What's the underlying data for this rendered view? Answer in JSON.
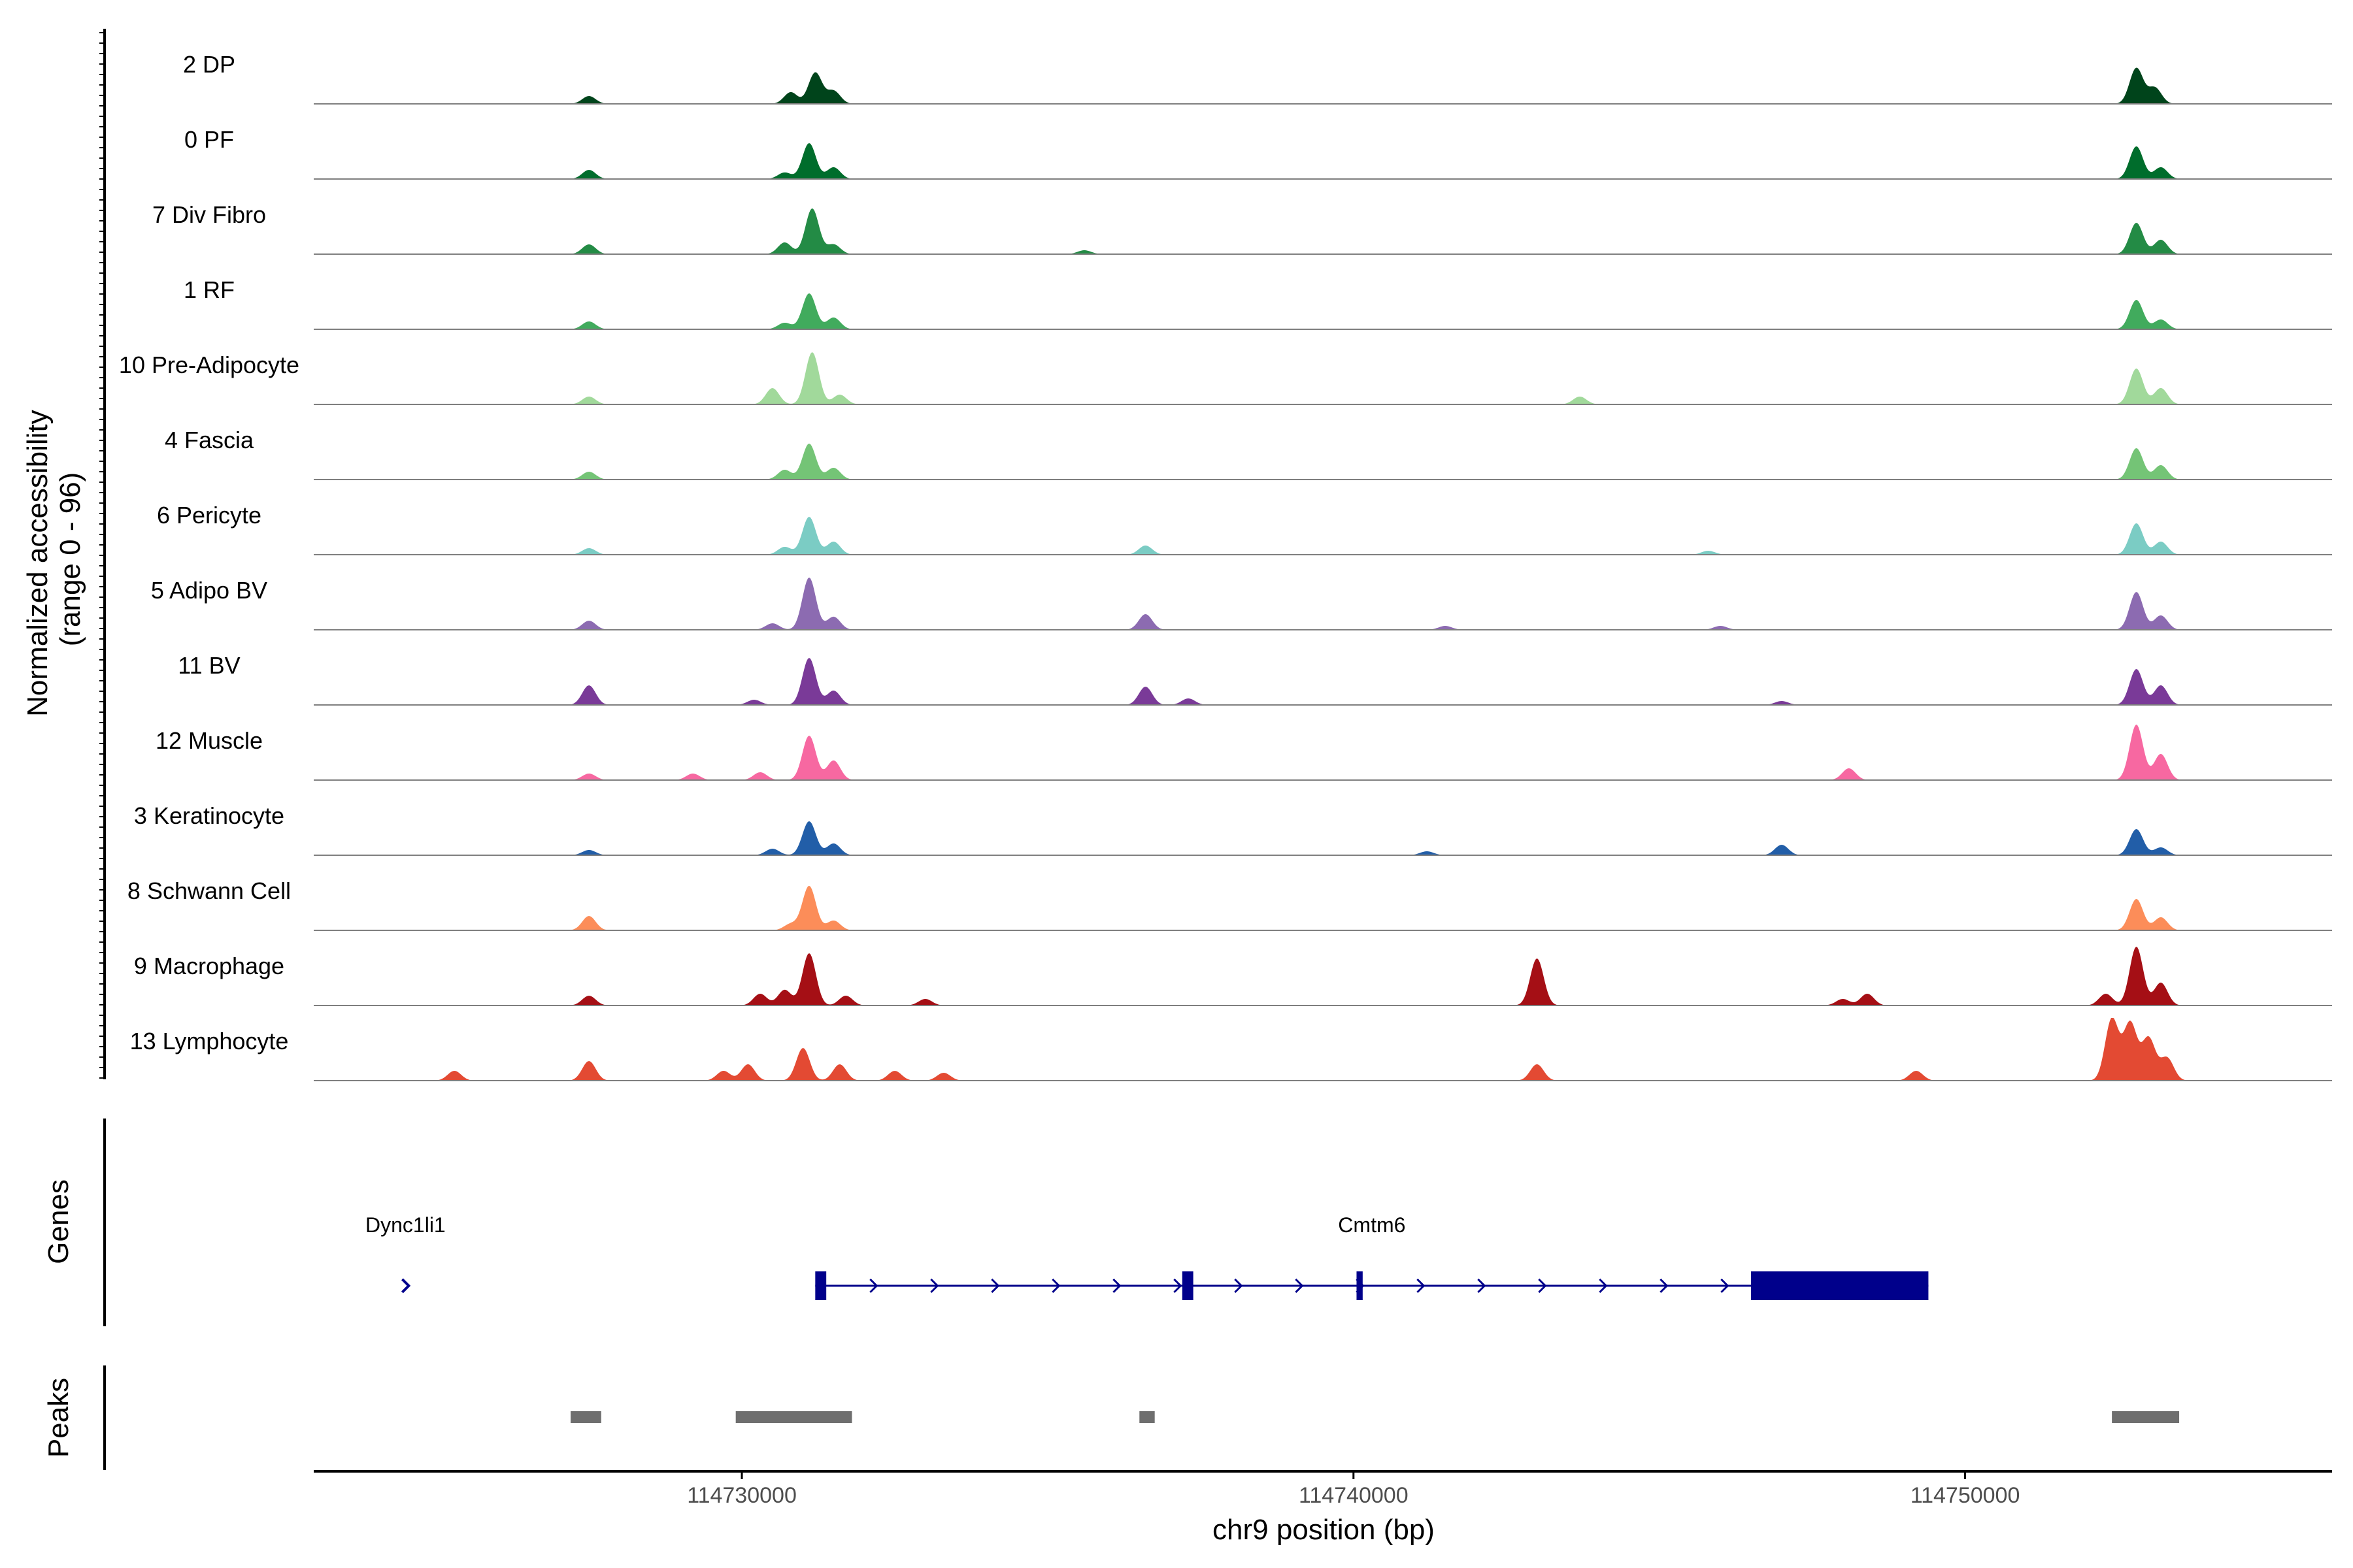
{
  "chart_data": {
    "type": "area",
    "region": {
      "chromosome": "chr9",
      "start": 114723000,
      "end": 114756000
    },
    "y_axis": {
      "title_line1": "Normalized accessibility",
      "title_line2": "(range 0 - 96)",
      "range": [
        0,
        96
      ]
    },
    "x_axis": {
      "title": "chr9 position (bp)",
      "ticks": [
        114730000,
        114740000,
        114750000
      ],
      "tick_labels": [
        "114730000",
        "114740000",
        "114750000"
      ]
    },
    "panel_labels": {
      "genes": "Genes",
      "peaks": "Peaks"
    },
    "tracks": [
      {
        "name": "2 DP",
        "color": "#00441b",
        "peaks": [
          [
            114727500,
            12
          ],
          [
            114730800,
            18
          ],
          [
            114731200,
            48
          ],
          [
            114731500,
            20
          ],
          [
            114752800,
            55
          ],
          [
            114753100,
            25
          ]
        ]
      },
      {
        "name": "0 PF",
        "color": "#006d2c",
        "peaks": [
          [
            114727500,
            14
          ],
          [
            114730700,
            10
          ],
          [
            114731100,
            55
          ],
          [
            114731500,
            18
          ],
          [
            114752800,
            50
          ],
          [
            114753200,
            18
          ]
        ]
      },
      {
        "name": "7 Div Fibro",
        "color": "#238b45",
        "peaks": [
          [
            114727500,
            15
          ],
          [
            114730700,
            18
          ],
          [
            114731150,
            70
          ],
          [
            114731500,
            15
          ],
          [
            114735600,
            6
          ],
          [
            114752800,
            48
          ],
          [
            114753200,
            22
          ]
        ]
      },
      {
        "name": "1 RF",
        "color": "#41ab5d",
        "peaks": [
          [
            114727500,
            12
          ],
          [
            114730700,
            10
          ],
          [
            114731100,
            55
          ],
          [
            114731500,
            18
          ],
          [
            114752800,
            45
          ],
          [
            114753200,
            15
          ]
        ]
      },
      {
        "name": "10 Pre-Adipocyte",
        "color": "#a1d99b",
        "peaks": [
          [
            114727500,
            12
          ],
          [
            114730500,
            25
          ],
          [
            114731150,
            80
          ],
          [
            114731600,
            15
          ],
          [
            114743700,
            12
          ],
          [
            114752800,
            55
          ],
          [
            114753200,
            25
          ]
        ]
      },
      {
        "name": "4 Fascia",
        "color": "#74c476",
        "peaks": [
          [
            114727500,
            12
          ],
          [
            114730700,
            15
          ],
          [
            114731100,
            55
          ],
          [
            114731500,
            18
          ],
          [
            114752800,
            48
          ],
          [
            114753200,
            22
          ]
        ]
      },
      {
        "name": "6 Pericyte",
        "color": "#7bccc4",
        "peaks": [
          [
            114727500,
            10
          ],
          [
            114730700,
            12
          ],
          [
            114731100,
            58
          ],
          [
            114731500,
            20
          ],
          [
            114736600,
            14
          ],
          [
            114745800,
            6
          ],
          [
            114752800,
            48
          ],
          [
            114753200,
            20
          ]
        ]
      },
      {
        "name": "5 Adipo BV",
        "color": "#8c6bb1",
        "peaks": [
          [
            114727500,
            14
          ],
          [
            114730500,
            10
          ],
          [
            114731100,
            80
          ],
          [
            114731500,
            20
          ],
          [
            114736600,
            24
          ],
          [
            114741500,
            6
          ],
          [
            114746000,
            6
          ],
          [
            114752800,
            58
          ],
          [
            114753200,
            22
          ]
        ]
      },
      {
        "name": "11 BV",
        "color": "#7a3a98",
        "peaks": [
          [
            114727500,
            30
          ],
          [
            114730200,
            8
          ],
          [
            114731100,
            72
          ],
          [
            114731500,
            22
          ],
          [
            114736600,
            28
          ],
          [
            114737300,
            10
          ],
          [
            114747000,
            6
          ],
          [
            114752800,
            55
          ],
          [
            114753200,
            30
          ]
        ]
      },
      {
        "name": "12 Muscle",
        "color": "#f768a1",
        "peaks": [
          [
            114727500,
            10
          ],
          [
            114729200,
            10
          ],
          [
            114730300,
            12
          ],
          [
            114731100,
            68
          ],
          [
            114731500,
            30
          ],
          [
            114748100,
            18
          ],
          [
            114752800,
            85
          ],
          [
            114753200,
            40
          ]
        ]
      },
      {
        "name": "3 Keratinocyte",
        "color": "#225ea8",
        "peaks": [
          [
            114727500,
            8
          ],
          [
            114730500,
            10
          ],
          [
            114731100,
            52
          ],
          [
            114731500,
            18
          ],
          [
            114741200,
            6
          ],
          [
            114747000,
            16
          ],
          [
            114752800,
            40
          ],
          [
            114753200,
            12
          ]
        ]
      },
      {
        "name": "8 Schwann Cell",
        "color": "#fc8d59",
        "peaks": [
          [
            114727500,
            22
          ],
          [
            114730800,
            10
          ],
          [
            114731100,
            68
          ],
          [
            114731500,
            15
          ],
          [
            114752800,
            48
          ],
          [
            114753200,
            20
          ]
        ]
      },
      {
        "name": "9 Macrophage",
        "color": "#a50f15",
        "peaks": [
          [
            114727500,
            15
          ],
          [
            114730300,
            18
          ],
          [
            114730700,
            24
          ],
          [
            114731100,
            80
          ],
          [
            114731700,
            15
          ],
          [
            114733000,
            10
          ],
          [
            114743000,
            72
          ],
          [
            114748000,
            10
          ],
          [
            114748400,
            18
          ],
          [
            114752300,
            18
          ],
          [
            114752800,
            90
          ],
          [
            114753200,
            35
          ]
        ]
      },
      {
        "name": "13 Lymphocyte",
        "color": "#e34a33",
        "peaks": [
          [
            114725300,
            15
          ],
          [
            114727500,
            30
          ],
          [
            114729700,
            15
          ],
          [
            114730100,
            25
          ],
          [
            114731000,
            50
          ],
          [
            114731600,
            25
          ],
          [
            114732500,
            15
          ],
          [
            114733300,
            12
          ],
          [
            114743000,
            25
          ],
          [
            114749200,
            15
          ],
          [
            114752400,
            95
          ],
          [
            114752700,
            88
          ],
          [
            114753000,
            65
          ],
          [
            114753300,
            35
          ]
        ]
      }
    ],
    "genes": [
      {
        "name": "Dync1li1",
        "start": 114724400,
        "end": 114724600,
        "strand": "+",
        "exons": []
      },
      {
        "name": "Cmtm6",
        "start": 114731200,
        "end": 114749400,
        "strand": "+",
        "exons": [
          [
            114731200,
            114731380
          ],
          [
            114737200,
            114737380
          ],
          [
            114740050,
            114740150
          ],
          [
            114746500,
            114749400
          ]
        ]
      }
    ],
    "peaks_regions": [
      [
        114727200,
        114727700
      ],
      [
        114729900,
        114731800
      ],
      [
        114736500,
        114736750
      ],
      [
        114752400,
        114753500
      ]
    ]
  }
}
